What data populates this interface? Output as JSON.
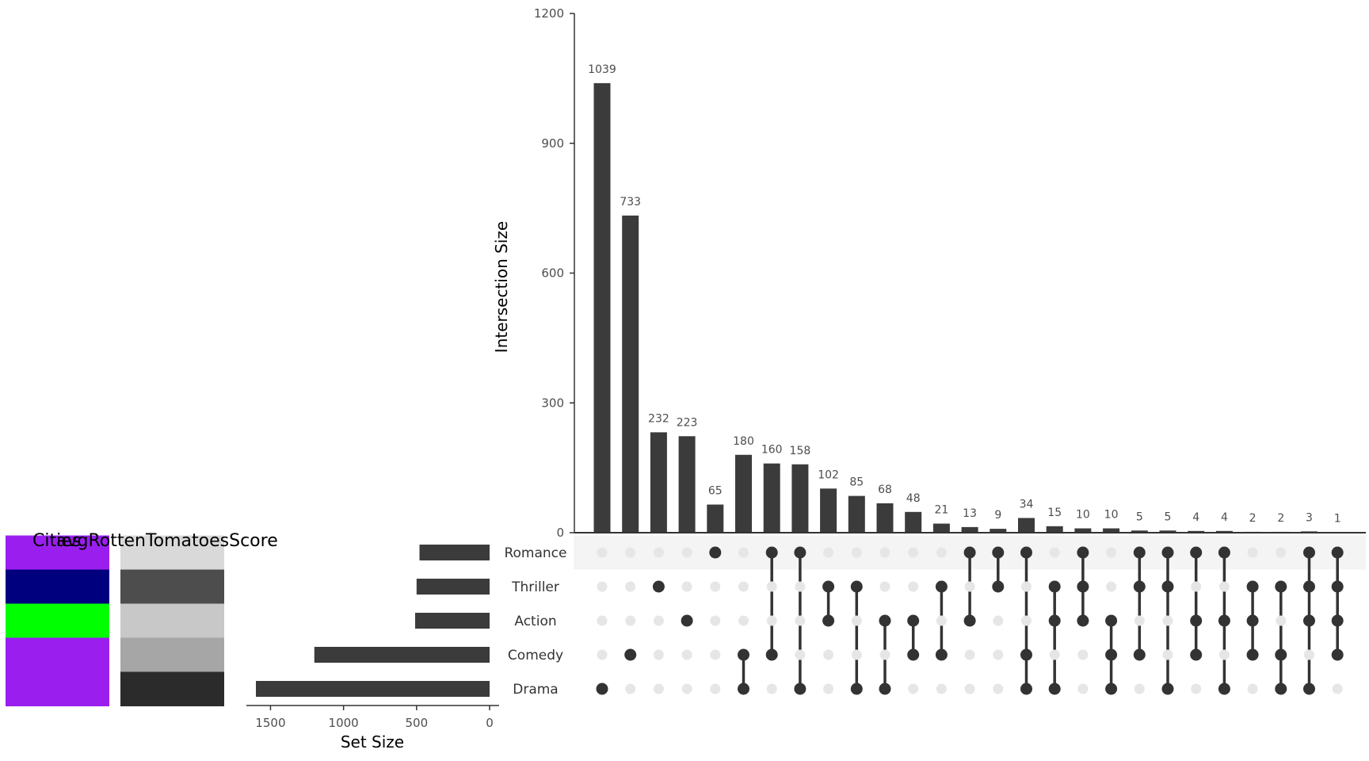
{
  "chart_data": {
    "type": "upset",
    "sets": [
      "Romance",
      "Thriller",
      "Action",
      "Comedy",
      "Drama"
    ],
    "set_sizes": [
      480,
      500,
      510,
      1200,
      1600
    ],
    "set_size_axis": {
      "title": "Set Size",
      "ticks": [
        1500,
        1000,
        500,
        0
      ],
      "max": 1600
    },
    "intersection_axis": {
      "title": "Intersection Size",
      "ticks": [
        0,
        300,
        600,
        900,
        1200
      ],
      "ylim": [
        0,
        1200
      ]
    },
    "intersections": [
      {
        "sets": [
          "Drama"
        ],
        "value": 1039
      },
      {
        "sets": [
          "Comedy"
        ],
        "value": 733
      },
      {
        "sets": [
          "Thriller"
        ],
        "value": 232
      },
      {
        "sets": [
          "Action"
        ],
        "value": 223
      },
      {
        "sets": [
          "Romance"
        ],
        "value": 65
      },
      {
        "sets": [
          "Comedy",
          "Drama"
        ],
        "value": 180
      },
      {
        "sets": [
          "Romance",
          "Comedy"
        ],
        "value": 160
      },
      {
        "sets": [
          "Romance",
          "Drama"
        ],
        "value": 158
      },
      {
        "sets": [
          "Thriller",
          "Action"
        ],
        "value": 102
      },
      {
        "sets": [
          "Thriller",
          "Drama"
        ],
        "value": 85
      },
      {
        "sets": [
          "Action",
          "Drama"
        ],
        "value": 68
      },
      {
        "sets": [
          "Action",
          "Comedy"
        ],
        "value": 48
      },
      {
        "sets": [
          "Thriller",
          "Comedy"
        ],
        "value": 21
      },
      {
        "sets": [
          "Romance",
          "Action"
        ],
        "value": 13
      },
      {
        "sets": [
          "Romance",
          "Thriller"
        ],
        "value": 9
      },
      {
        "sets": [
          "Romance",
          "Comedy",
          "Drama"
        ],
        "value": 34
      },
      {
        "sets": [
          "Thriller",
          "Action",
          "Drama"
        ],
        "value": 15
      },
      {
        "sets": [
          "Romance",
          "Thriller",
          "Action"
        ],
        "value": 10
      },
      {
        "sets": [
          "Action",
          "Comedy",
          "Drama"
        ],
        "value": 10
      },
      {
        "sets": [
          "Romance",
          "Thriller",
          "Comedy"
        ],
        "value": 5
      },
      {
        "sets": [
          "Romance",
          "Thriller",
          "Drama"
        ],
        "value": 5
      },
      {
        "sets": [
          "Romance",
          "Action",
          "Comedy"
        ],
        "value": 4
      },
      {
        "sets": [
          "Romance",
          "Action",
          "Drama"
        ],
        "value": 4
      },
      {
        "sets": [
          "Thriller",
          "Action",
          "Comedy"
        ],
        "value": 2
      },
      {
        "sets": [
          "Thriller",
          "Comedy",
          "Drama"
        ],
        "value": 2
      },
      {
        "sets": [
          "Romance",
          "Thriller",
          "Action",
          "Drama"
        ],
        "value": 3
      },
      {
        "sets": [
          "Romance",
          "Thriller",
          "Action",
          "Comedy"
        ],
        "value": 1
      }
    ],
    "metadata_columns": [
      {
        "title": "Cities",
        "colors": [
          "#9a1fef",
          "#00007f",
          "#00ff00",
          "#9a1fef",
          "#9a1fef"
        ]
      },
      {
        "title": "avgRottenTomatoesScore",
        "colors": [
          "#d9d9d9",
          "#4d4d4d",
          "#c8c8c8",
          "#a6a6a6",
          "#2b2b2b"
        ]
      }
    ],
    "colors": {
      "bar": "#3b3b3b",
      "dot_active": "#333333",
      "dot_inactive": "#e6e6e6",
      "stripe": "#f4f4f4"
    }
  }
}
